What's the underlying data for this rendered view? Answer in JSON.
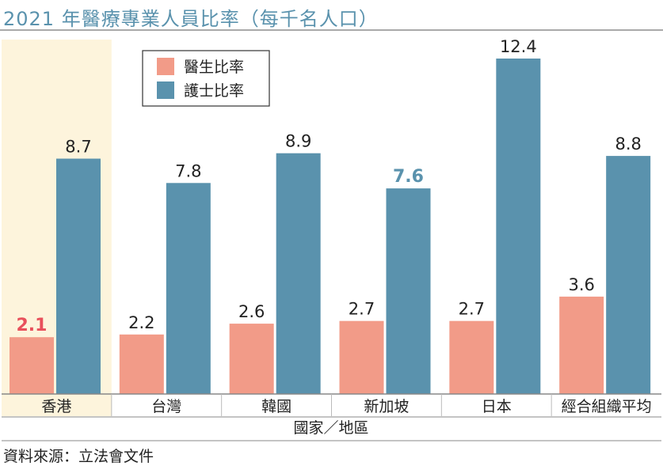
{
  "title": "2021 年醫療專業人員比率（每千名人口）",
  "source": "資料來源：立法會文件",
  "chart_data": {
    "type": "bar",
    "title": "2021 年醫療專業人員比率（每千名人口）",
    "xlabel": "國家／地區",
    "ylabel": "",
    "ylim": [
      0,
      12.4
    ],
    "grid": false,
    "legend_position": "top-left",
    "highlight_category": "香港",
    "categories": [
      "香港",
      "台灣",
      "韓國",
      "新加坡",
      "日本",
      "經合組織平均"
    ],
    "series": [
      {
        "name": "醫生比率",
        "color": "#f29b88",
        "values": [
          2.1,
          2.2,
          2.6,
          2.7,
          2.7,
          3.6
        ]
      },
      {
        "name": "護士比率",
        "color": "#5a92ad",
        "values": [
          8.7,
          7.8,
          8.9,
          7.6,
          12.4,
          8.8
        ]
      }
    ],
    "value_labels": [
      [
        "2.1",
        "2.2",
        "2.6",
        "2.7",
        "2.7",
        "3.6"
      ],
      [
        "8.7",
        "7.8",
        "8.9",
        "7.6",
        "12.4",
        "8.8"
      ]
    ],
    "emphasized_labels": [
      {
        "series": 0,
        "category": 0,
        "color": "#e8505b"
      },
      {
        "series": 1,
        "category": 3,
        "color": "#5a92ad"
      }
    ],
    "colors": {
      "highlight_band": "#fdf4dc",
      "axis": "#888888",
      "text": "#222222"
    }
  }
}
